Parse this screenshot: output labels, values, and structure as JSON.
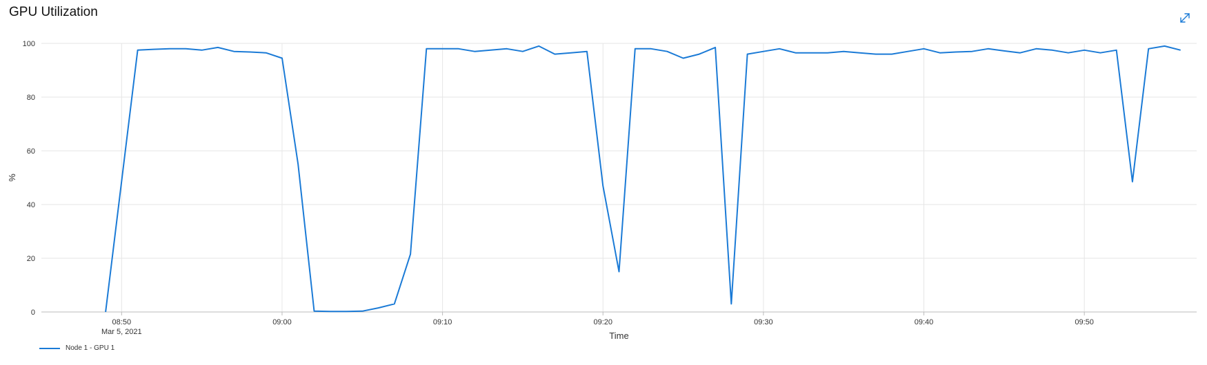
{
  "title": "GPU Utilization",
  "expand_icon": "expand-diagonal-icon",
  "colors": {
    "line": "#1a7ad6",
    "grid": "#e6e6e6",
    "axis": "#bbbbbb",
    "icon": "#1a7ad6"
  },
  "chart_data": {
    "type": "line",
    "title": "GPU Utilization",
    "xlabel": "Time",
    "ylabel": "%",
    "ylim": [
      0,
      100
    ],
    "yticks": [
      0,
      20,
      40,
      60,
      80,
      100
    ],
    "xlim": [
      "08:45",
      "09:57"
    ],
    "xticks": [
      {
        "t": "08:50",
        "label": "08:50",
        "sublabel": "Mar 5, 2021"
      },
      {
        "t": "09:00",
        "label": "09:00"
      },
      {
        "t": "09:10",
        "label": "09:10"
      },
      {
        "t": "09:20",
        "label": "09:20"
      },
      {
        "t": "09:30",
        "label": "09:30"
      },
      {
        "t": "09:40",
        "label": "09:40"
      },
      {
        "t": "09:50",
        "label": "09:50"
      }
    ],
    "grid": true,
    "legend_position": "bottom-left",
    "series": [
      {
        "name": "Node 1 - GPU 1",
        "x": [
          "08:49",
          "08:51",
          "08:52",
          "08:53",
          "08:54",
          "08:55",
          "08:56",
          "08:57",
          "08:58",
          "08:59",
          "09:00",
          "09:01",
          "09:02",
          "09:03",
          "09:04",
          "09:05",
          "09:06",
          "09:07",
          "09:08",
          "09:09",
          "09:10",
          "09:11",
          "09:12",
          "09:13",
          "09:14",
          "09:15",
          "09:16",
          "09:17",
          "09:18",
          "09:19",
          "09:20",
          "09:21",
          "09:22",
          "09:23",
          "09:24",
          "09:25",
          "09:26",
          "09:27",
          "09:28",
          "09:29",
          "09:30",
          "09:31",
          "09:32",
          "09:33",
          "09:34",
          "09:35",
          "09:36",
          "09:37",
          "09:38",
          "09:39",
          "09:40",
          "09:41",
          "09:42",
          "09:43",
          "09:44",
          "09:45",
          "09:46",
          "09:47",
          "09:48",
          "09:49",
          "09:50",
          "09:51",
          "09:52",
          "09:53",
          "09:54",
          "09:55",
          "09:56"
        ],
        "y": [
          0,
          97.5,
          97.8,
          98,
          98,
          97.5,
          98.5,
          97,
          96.8,
          96.5,
          94.5,
          55,
          0.3,
          0.2,
          0.2,
          0.3,
          1.5,
          3,
          21.5,
          98,
          98,
          98,
          97,
          97.5,
          98,
          97,
          99,
          96,
          96.5,
          97,
          47,
          15,
          98,
          98,
          97,
          94.5,
          96,
          98.5,
          3,
          96,
          97,
          98,
          96.5,
          96.5,
          96.5,
          97,
          96.5,
          96,
          96,
          97,
          98,
          96.5,
          96.8,
          97,
          98,
          97.2,
          96.5,
          98,
          97.5,
          96.5,
          97.5,
          96.5,
          97.5,
          48.5,
          98,
          99,
          97.5
        ]
      }
    ]
  }
}
